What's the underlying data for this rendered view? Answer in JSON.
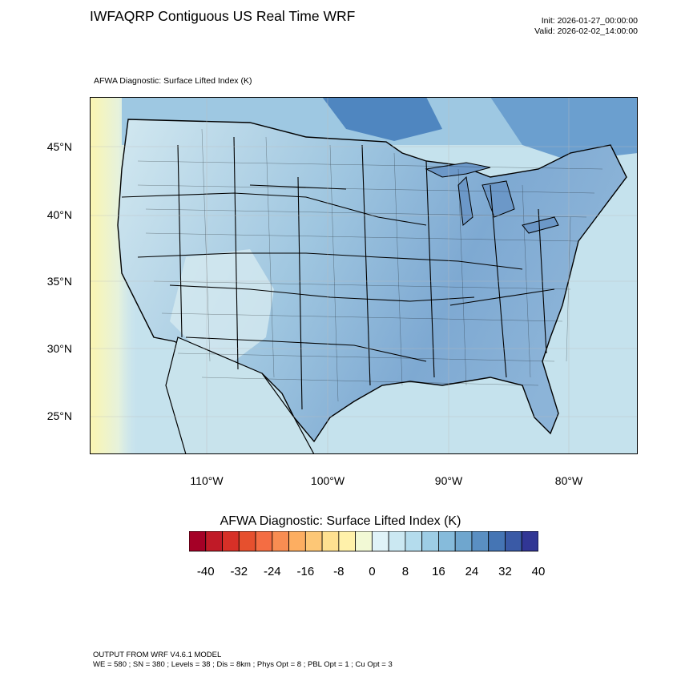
{
  "header": {
    "title": "IWFAQRP Contiguous US Real Time WRF",
    "init": "Init: 2026-01-27_00:00:00",
    "valid": "Valid: 2026-02-02_14:00:00",
    "subtitle": "AFWA Diagnostic: Surface Lifted Index   (K)"
  },
  "map": {
    "lat_labels": [
      "45°N",
      "40°N",
      "35°N",
      "30°N",
      "25°N"
    ],
    "lon_labels": [
      "110°W",
      "100°W",
      "90°W",
      "80°W"
    ],
    "colors": {
      "land_mid": "#aacfe4",
      "land_dark": "#6f9fcc",
      "ocean": "#c2e0ec",
      "west_warm": "#f4f8c4",
      "border": "#000000"
    }
  },
  "colorbar": {
    "title": "AFWA Diagnostic: Surface Lifted Index  (K)",
    "colors": [
      "#a50026",
      "#c01a27",
      "#d73027",
      "#e6502e",
      "#f46d43",
      "#f88d52",
      "#fdae61",
      "#fdc776",
      "#fee090",
      "#fff1aa",
      "#f2f9d5",
      "#e0f3f8",
      "#cbe8f2",
      "#b4dced",
      "#9dcde5",
      "#86bbdb",
      "#6fa6ce",
      "#5a8fc2",
      "#4575b4",
      "#3a5aa6",
      "#313695"
    ],
    "labels": [
      "-40",
      "-32",
      "-24",
      "-16",
      "-8",
      "0",
      "8",
      "16",
      "24",
      "32",
      "40"
    ]
  },
  "footer": {
    "line1": "OUTPUT FROM WRF V4.6.1 MODEL",
    "line2": "WE = 580 ; SN = 380 ; Levels = 38 ; Dis = 8km ; Phys Opt = 8 ; PBL Opt = 1 ; Cu Opt = 3"
  }
}
